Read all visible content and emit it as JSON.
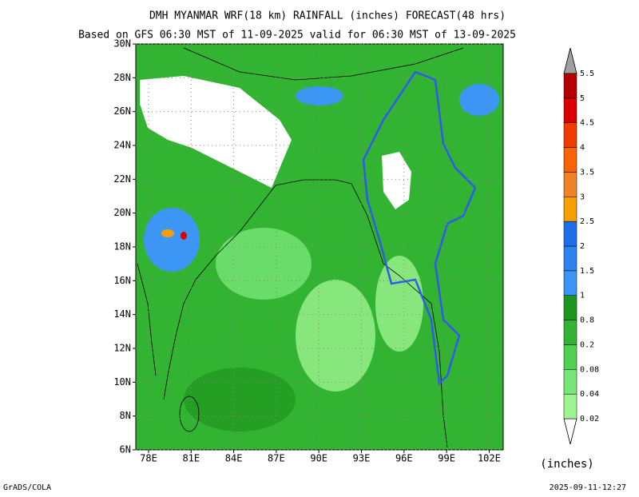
{
  "header": {
    "title": "DMH MYANMAR WRF(18 km) RAINFALL (inches) FORECAST(48 hrs)",
    "subtitle": "Based on GFS 06:30 MST of 11-09-2025 valid for 06:30 MST of 13-09-2025"
  },
  "map": {
    "lon_ticks": [
      "78E",
      "81E",
      "84E",
      "87E",
      "90E",
      "93E",
      "96E",
      "99E",
      "102E"
    ],
    "lat_ticks": [
      "30N",
      "28N",
      "26N",
      "24N",
      "22N",
      "20N",
      "18N",
      "16N",
      "14N",
      "12N",
      "10N",
      "8N",
      "6N"
    ]
  },
  "colorbar": {
    "levels": [
      0.02,
      0.04,
      0.08,
      0.2,
      0.8,
      1,
      1.5,
      2,
      2.5,
      3,
      3.5,
      4,
      4.5,
      5,
      5.5
    ],
    "colors": [
      "#9cf490",
      "#78e678",
      "#50d250",
      "#32b432",
      "#1e961e",
      "#3c96f5",
      "#2d82f0",
      "#1e6eeb",
      "#f5a000",
      "#f08228",
      "#fa6400",
      "#f03c00",
      "#dc0000",
      "#b40000"
    ],
    "unit": "(inches)"
  },
  "footer": {
    "left": "GrADS/COLA",
    "right": "2025-09-11-12:27"
  }
}
